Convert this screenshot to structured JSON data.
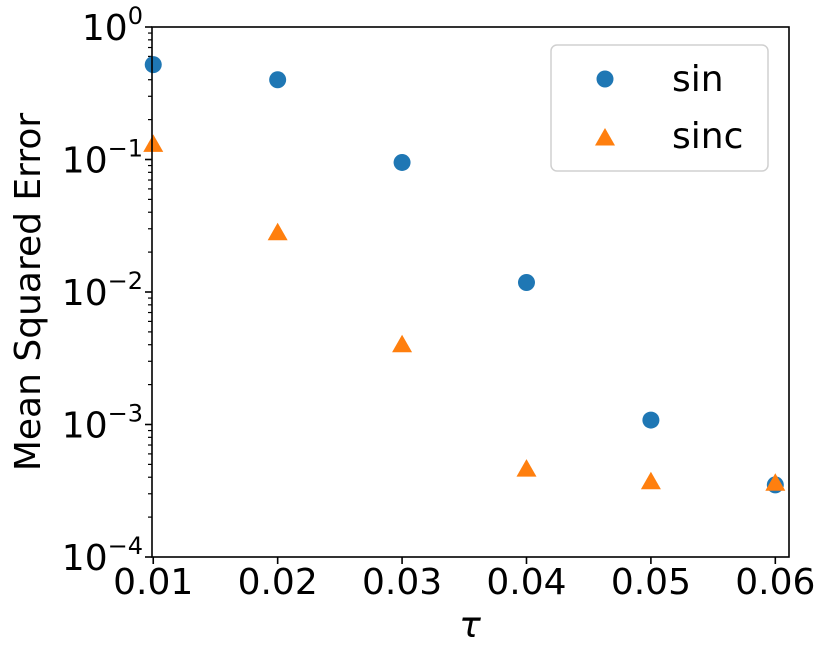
{
  "chart_data": {
    "type": "scatter",
    "title": "",
    "xlabel": "τ",
    "ylabel": "Mean Squared Error",
    "yscale": "log",
    "xlim": [
      0.0099,
      0.0611
    ],
    "ylim": [
      0.0001,
      1
    ],
    "xticks": [
      0.01,
      0.02,
      0.03,
      0.04,
      0.05,
      0.06
    ],
    "xtick_labels": [
      "0.01",
      "0.02",
      "0.03",
      "0.04",
      "0.05",
      "0.06"
    ],
    "yticks": [
      {
        "value": 1,
        "base": "10",
        "exp": "0"
      },
      {
        "value": 0.1,
        "base": "10",
        "exp": "−1"
      },
      {
        "value": 0.01,
        "base": "10",
        "exp": "−2"
      },
      {
        "value": 0.001,
        "base": "10",
        "exp": "−3"
      },
      {
        "value": 0.0001,
        "base": "10",
        "exp": "−4"
      }
    ],
    "grid": false,
    "legend_position": "top-right",
    "series": [
      {
        "name": "sin",
        "marker": "circle",
        "color": "#1f77b4",
        "x": [
          0.01,
          0.02,
          0.03,
          0.04,
          0.05,
          0.06
        ],
        "y": [
          0.52,
          0.4,
          0.095,
          0.0118,
          0.00108,
          0.00035
        ]
      },
      {
        "name": "sinc",
        "marker": "triangle",
        "color": "#ff7f0e",
        "x": [
          0.01,
          0.02,
          0.03,
          0.04,
          0.05,
          0.06
        ],
        "y": [
          0.13,
          0.028,
          0.004,
          0.00046,
          0.00037,
          0.00036
        ]
      }
    ]
  }
}
